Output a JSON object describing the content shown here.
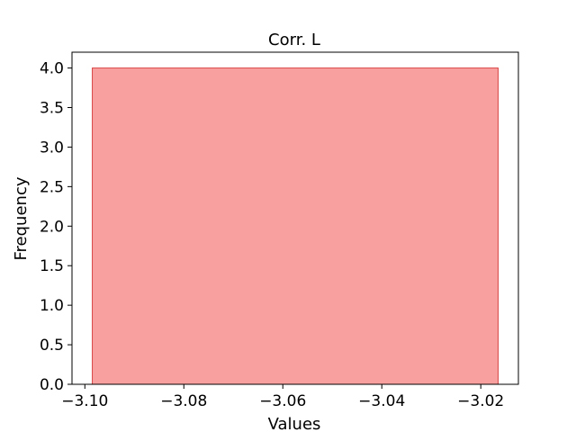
{
  "chart_data": {
    "type": "bar",
    "title": "Corr. L",
    "xlabel": "Values",
    "ylabel": "Frequency",
    "bins": [
      {
        "x_start": -3.0985,
        "x_end": -3.0165,
        "value": 4.0
      }
    ],
    "xlim": [
      -3.1026,
      -3.0124
    ],
    "ylim": [
      0,
      4.2
    ],
    "x_ticks": [
      -3.1,
      -3.08,
      -3.06,
      -3.04,
      -3.02
    ],
    "x_tick_labels": [
      "−3.10",
      "−3.08",
      "−3.06",
      "−3.04",
      "−3.02"
    ],
    "y_ticks": [
      0.0,
      0.5,
      1.0,
      1.5,
      2.0,
      2.5,
      3.0,
      3.5,
      4.0
    ],
    "y_tick_labels": [
      "0.0",
      "0.5",
      "1.0",
      "1.5",
      "2.0",
      "2.5",
      "3.0",
      "3.5",
      "4.0"
    ],
    "bar_fill": "#f8a0a0",
    "bar_edge": "#d94545",
    "grid": false
  }
}
